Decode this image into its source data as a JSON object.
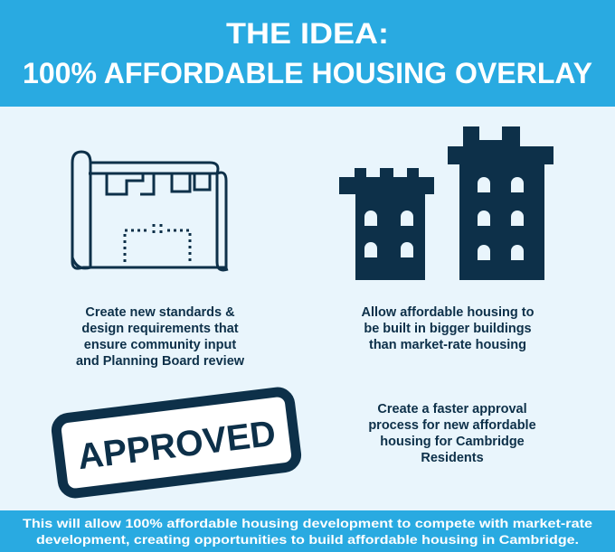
{
  "header": {
    "title_lines": [
      "THE IDEA:",
      "100% AFFORDABLE HOUSING OVERLAY"
    ]
  },
  "items": [
    {
      "lines": [
        "Create new standards &",
        "design requirements that",
        "ensure community input",
        "and Planning Board review"
      ]
    },
    {
      "lines": [
        "Allow affordable housing to",
        "be built in bigger buildings",
        "than market-rate housing"
      ]
    },
    {
      "lines": [
        "Create a faster approval",
        "process for new affordable",
        "housing for Cambridge",
        "Residents"
      ]
    }
  ],
  "stamp": {
    "text": "APPROVED"
  },
  "footer": {
    "lines": [
      "This will allow 100% affordable housing development to compete with market-rate",
      "development, creating opportunities to build affordable housing in Cambridge."
    ]
  }
}
